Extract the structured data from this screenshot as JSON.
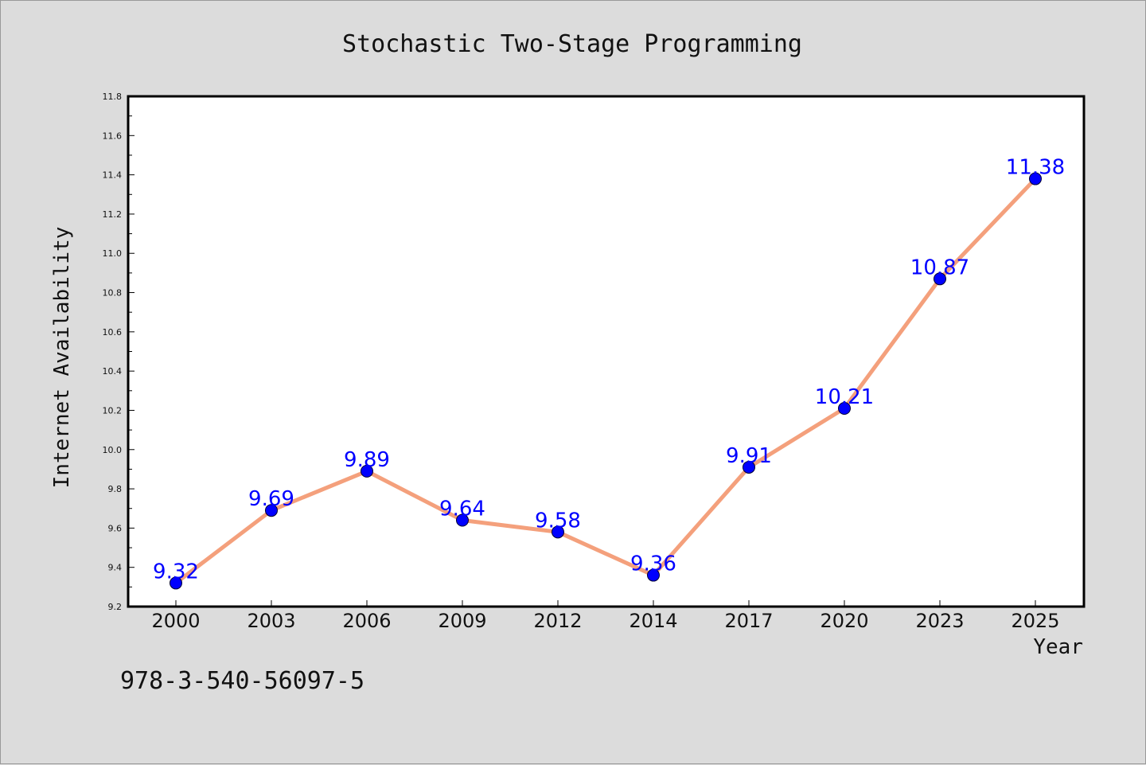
{
  "footer_text": "978-3-540-56097-5",
  "colors": {
    "background": "#dcdcdc",
    "plot_background": "#ffffff",
    "line": "#f4a07c",
    "marker": "#0000ff",
    "data_label": "#0000ff"
  },
  "chart_data": {
    "type": "line",
    "title": "Stochastic Two-Stage Programming",
    "xlabel": "Year",
    "ylabel": "Internet Availability",
    "categories": [
      "2000",
      "2003",
      "2006",
      "2009",
      "2012",
      "2014",
      "2017",
      "2020",
      "2023",
      "2025"
    ],
    "series": [
      {
        "values": [
          9.32,
          9.69,
          9.89,
          9.64,
          9.58,
          9.36,
          9.91,
          10.21,
          10.87,
          11.38
        ]
      }
    ],
    "data_labels": [
      "9.32",
      "9.69",
      "9.89",
      "9.64",
      "9.58",
      "9.36",
      "9.91",
      "10.21",
      "10.87",
      "11.38"
    ],
    "ylim": [
      9.2,
      11.8
    ],
    "yticks": [
      "9.2",
      "9.4",
      "9.6",
      "9.8",
      "10.0",
      "10.2",
      "10.4",
      "10.6",
      "10.8",
      "11.0",
      "11.2",
      "11.4",
      "11.6",
      "11.8"
    ],
    "grid": false,
    "legend": "none",
    "marker": "circle"
  }
}
